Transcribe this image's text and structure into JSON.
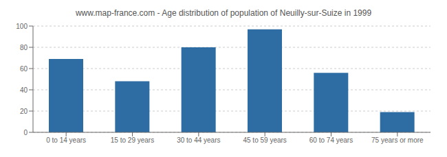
{
  "chart_data": {
    "type": "bar",
    "title": "www.map-france.com - Age distribution of population of Neuilly-sur-Suize in 1999",
    "categories": [
      "0 to 14 years",
      "15 to 29 years",
      "30 to 44 years",
      "45 to 59 years",
      "60 to 74 years",
      "75 years or more"
    ],
    "values": [
      69,
      48,
      80,
      97,
      56,
      19
    ],
    "color": "#2e6da4",
    "ylim": [
      0,
      100
    ],
    "yticks": [
      0,
      20,
      40,
      60,
      80,
      100
    ],
    "grid": true
  }
}
